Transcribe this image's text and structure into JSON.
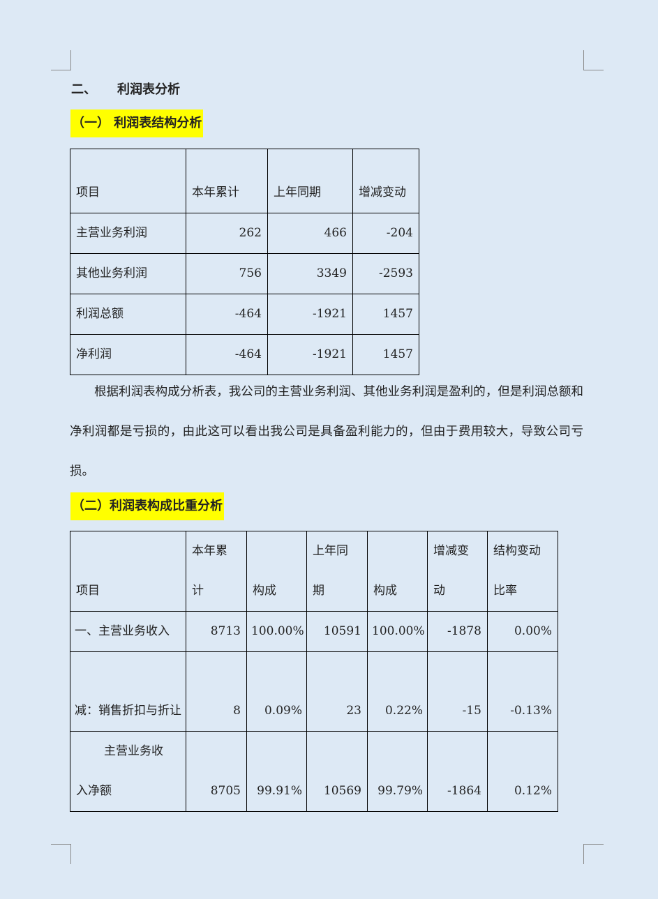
{
  "section_title": {
    "number": "二、",
    "text": "利润表分析"
  },
  "sub1": "（一） 利润表结构分析",
  "table1": {
    "headers": [
      "项目",
      "本年累计",
      "上年同期",
      "增减变动"
    ],
    "rows": [
      [
        "主营业务利润",
        "262",
        "466",
        "-204"
      ],
      [
        "其他业务利润",
        "756",
        "3349",
        "-2593"
      ],
      [
        "利润总额",
        "-464",
        "-1921",
        "1457"
      ],
      [
        "净利润",
        "-464",
        "-1921",
        "1457"
      ]
    ]
  },
  "paragraph": "根据利润表构成分析表，我公司的主营业务利润、其他业务利润是盈利的，但是利润总额和净利润都是亏损的，由此这可以看出我公司是具备盈利能力的，但由于费用较大，导致公司亏损。",
  "sub2": "（二）利润表构成比重分析",
  "table2": {
    "headers": [
      "项目",
      "本年累计",
      "构成",
      "上年同期",
      "构成",
      "增减变动",
      "结构变动比率"
    ],
    "rows": [
      [
        "一、主营业务收入",
        "8713",
        "100.00%",
        "10591",
        "100.00%",
        "-1878",
        "0.00%"
      ],
      [
        "减：销售折扣与折让",
        "8",
        "0.09%",
        "23",
        "0.22%",
        "-15",
        "-0.13%"
      ],
      [
        "主营业务收入净额",
        "8705",
        "99.91%",
        "10569",
        "99.79%",
        "-1864",
        "0.12%"
      ]
    ]
  }
}
